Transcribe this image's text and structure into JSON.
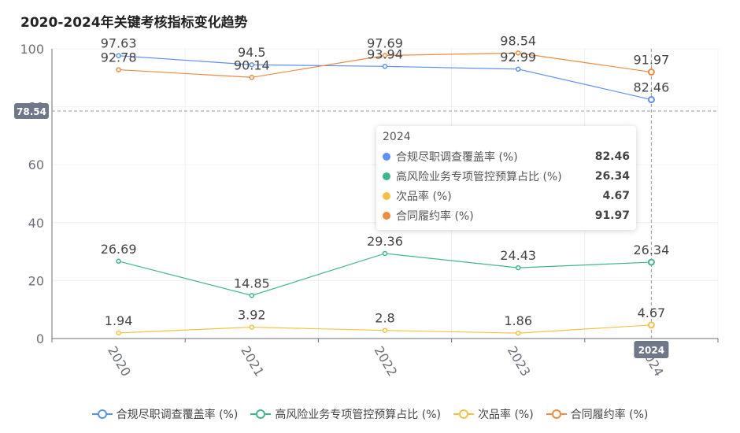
{
  "chart_data": {
    "type": "line",
    "title": "2020-2024年关键考核指标变化趋势",
    "categories": [
      "2020",
      "2021",
      "2022",
      "2023",
      "2024"
    ],
    "ylim": [
      0,
      100
    ],
    "yticks": [
      0,
      20,
      40,
      60,
      80,
      100
    ],
    "series": [
      {
        "name": "合规尽职调查覆盖率 (%)",
        "color": "#5B8FF9",
        "values": [
          97.63,
          94.5,
          93.94,
          92.99,
          82.46
        ]
      },
      {
        "name": "高风险业务专项管控预算占比 (%)",
        "color": "#3EB78F",
        "values": [
          26.69,
          14.85,
          29.36,
          24.43,
          26.34
        ]
      },
      {
        "name": "次品率 (%)",
        "color": "#F6C142",
        "values": [
          1.94,
          3.92,
          2.8,
          1.86,
          4.67
        ]
      },
      {
        "name": "合同履约率 (%)",
        "color": "#F08A3E",
        "values": [
          92.78,
          90.14,
          97.69,
          98.54,
          91.97
        ]
      }
    ],
    "crosshair": {
      "y_value_label": "78.54",
      "x_value_label": "2024"
    },
    "legend_position": "bottom-center"
  },
  "tooltip": {
    "header": "2024",
    "rows": [
      {
        "name": "合规尽职调查覆盖率 (%)",
        "value": "82.46",
        "color": "#5B8FF9"
      },
      {
        "name": "高风险业务专项管控预算占比 (%)",
        "value": "26.34",
        "color": "#3EB78F"
      },
      {
        "name": "次品率 (%)",
        "value": "4.67",
        "color": "#F6C142"
      },
      {
        "name": "合同履约率 (%)",
        "value": "91.97",
        "color": "#F08A3E"
      }
    ]
  }
}
